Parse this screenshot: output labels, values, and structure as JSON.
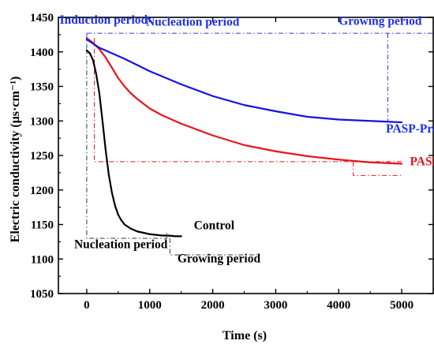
{
  "chart_data": {
    "type": "line",
    "xlabel": "Time (s)",
    "ylabel": "Electric conductivity (μs·cm⁻¹)",
    "xlim": [
      -450,
      5500
    ],
    "ylim": [
      1050,
      1450
    ],
    "xticks": [
      0,
      1000,
      2000,
      3000,
      4000,
      5000
    ],
    "yticks": [
      1050,
      1100,
      1150,
      1200,
      1250,
      1300,
      1350,
      1400,
      1450
    ],
    "grid": false,
    "series": [
      {
        "name": "Control",
        "color": "#000000",
        "x": [
          0,
          50,
          100,
          150,
          200,
          250,
          300,
          350,
          400,
          450,
          500,
          550,
          600,
          700,
          800,
          900,
          1000,
          1100,
          1200,
          1300,
          1400,
          1500
        ],
        "y": [
          1402,
          1398,
          1388,
          1368,
          1340,
          1300,
          1258,
          1222,
          1196,
          1177,
          1164,
          1156,
          1150,
          1144,
          1140,
          1138,
          1136,
          1135,
          1134,
          1134,
          1133,
          1133
        ]
      },
      {
        "name": "PASP",
        "color": "#e8141b",
        "x": [
          0,
          100,
          200,
          300,
          400,
          500,
          600,
          700,
          800,
          1000,
          1200,
          1500,
          2000,
          2500,
          3000,
          3500,
          4000,
          4500,
          5000
        ],
        "y": [
          1420,
          1413,
          1404,
          1392,
          1377,
          1362,
          1350,
          1340,
          1332,
          1318,
          1308,
          1296,
          1279,
          1265,
          1256,
          1249,
          1244,
          1240,
          1238
        ]
      },
      {
        "name": "PASP-Pro",
        "color": "#1414e0",
        "x": [
          0,
          200,
          400,
          600,
          800,
          1000,
          1500,
          2000,
          2500,
          3000,
          3500,
          4000,
          4500,
          5000
        ],
        "y": [
          1418,
          1406,
          1398,
          1390,
          1381,
          1372,
          1353,
          1336,
          1323,
          1314,
          1306,
          1302,
          1300,
          1298
        ]
      }
    ],
    "annotations": [
      {
        "text": "Induction period",
        "color": "#1d2ff0",
        "x": -430,
        "y": 1441
      },
      {
        "text": "Nucleation period",
        "color": "#1d2ff0",
        "x": 940,
        "y": 1438
      },
      {
        "text": "Growing period",
        "color": "#1d2ff0",
        "x": 4000,
        "y": 1439
      },
      {
        "text": "PASP-Pro",
        "color": "#1d2ff0",
        "x": 4750,
        "y": 1283
      },
      {
        "text": "PASP",
        "color": "#e8141b",
        "x": 5130,
        "y": 1236
      },
      {
        "text": "Control",
        "color": "#000000",
        "x": 1700,
        "y": 1143
      },
      {
        "text": "Nucleation period",
        "color": "#000000",
        "x": -200,
        "y": 1116
      },
      {
        "text": "Growing period",
        "color": "#000000",
        "x": 1440,
        "y": 1095
      }
    ]
  }
}
